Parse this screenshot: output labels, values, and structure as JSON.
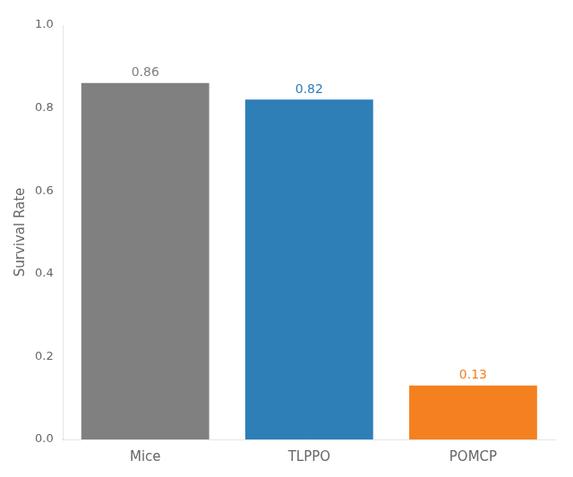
{
  "chart_data": {
    "type": "bar",
    "categories": [
      "Mice",
      "TLPPO",
      "POMCP"
    ],
    "values": [
      0.86,
      0.82,
      0.13
    ],
    "colors": [
      "#808080",
      "#2e7eb8",
      "#f58020"
    ],
    "ylabel": "Survival Rate",
    "ylim": [
      0.0,
      1.0
    ],
    "yticks": [
      {
        "value": 0.0,
        "label": "0.0"
      },
      0.2,
      0.4,
      0.6,
      0.8,
      {
        "value": 1.0,
        "label": "1.0"
      }
    ],
    "grid": false,
    "data_labels": true
  }
}
